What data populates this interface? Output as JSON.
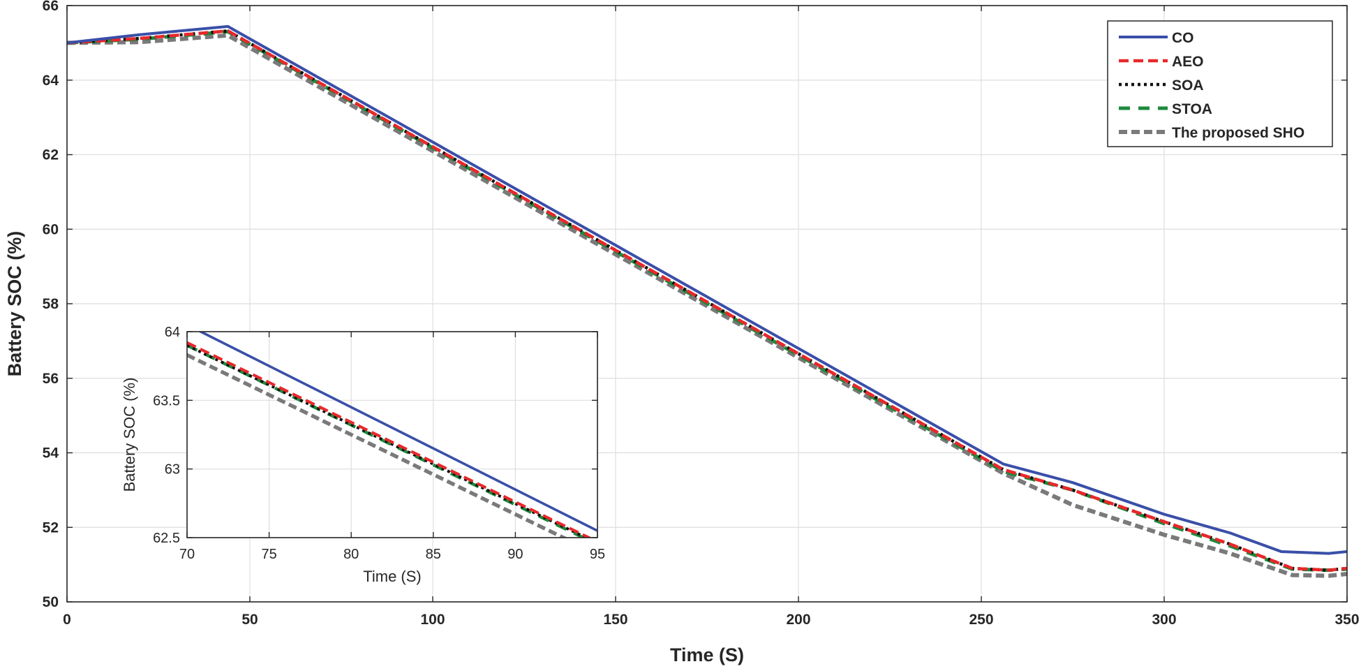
{
  "chart_data": [
    {
      "type": "line",
      "title": "",
      "xlabel": "Time (S)",
      "ylabel": "Battery SOC (%)",
      "xlim": [
        0,
        350
      ],
      "ylim": [
        50,
        66
      ],
      "xticks": [
        0,
        50,
        100,
        150,
        200,
        250,
        300,
        350
      ],
      "yticks": [
        50,
        52,
        54,
        56,
        58,
        60,
        62,
        64,
        66
      ],
      "grid": true,
      "legend_position": "top-right",
      "series": [
        {
          "name": "CO",
          "color": "#3a4fa8",
          "style": "solid",
          "x": [
            0,
            20,
            44,
            256,
            275,
            300,
            318,
            332,
            345,
            350
          ],
          "y": [
            65.0,
            65.22,
            65.44,
            53.7,
            53.2,
            52.35,
            51.85,
            51.35,
            51.3,
            51.35
          ]
        },
        {
          "name": "AEO",
          "color": "#e8282b",
          "style": "dashed",
          "x": [
            0,
            20,
            44,
            256,
            275,
            300,
            318,
            335,
            345,
            350
          ],
          "y": [
            65.0,
            65.12,
            65.32,
            53.55,
            53.0,
            52.15,
            51.55,
            50.9,
            50.85,
            50.9
          ]
        },
        {
          "name": "SOA",
          "color": "#111111",
          "style": "dotted",
          "x": [
            0,
            20,
            44,
            256,
            275,
            300,
            318,
            335,
            345,
            350
          ],
          "y": [
            65.0,
            65.12,
            65.32,
            53.55,
            53.0,
            52.15,
            51.55,
            50.9,
            50.85,
            50.9
          ]
        },
        {
          "name": "STOA",
          "color": "#1e8a3c",
          "style": "dash-gap",
          "x": [
            0,
            20,
            44,
            256,
            275,
            300,
            318,
            335,
            345,
            350
          ],
          "y": [
            65.0,
            65.1,
            65.3,
            53.5,
            53.0,
            52.1,
            51.5,
            50.88,
            50.85,
            50.88
          ]
        },
        {
          "name": "The proposed SHO",
          "color": "#7a7a7a",
          "style": "dashed-thick",
          "x": [
            0,
            20,
            44,
            256,
            275,
            300,
            318,
            335,
            345,
            350
          ],
          "y": [
            65.0,
            65.02,
            65.2,
            53.45,
            52.6,
            51.8,
            51.3,
            50.72,
            50.7,
            50.75
          ]
        }
      ]
    },
    {
      "type": "line",
      "title": "",
      "xlabel": "Time (S)",
      "ylabel": "Battery SOC (%)",
      "xlim": [
        70,
        95
      ],
      "ylim": [
        62.5,
        64
      ],
      "xticks": [
        70,
        75,
        80,
        85,
        90,
        95
      ],
      "yticks": [
        62.5,
        63,
        63.5,
        64
      ],
      "ytick_labels": [
        "62.5",
        "63",
        "63.5",
        "64"
      ],
      "grid": true,
      "series": [
        {
          "name": "CO",
          "x": [
            70,
            95
          ],
          "y": [
            64.05,
            62.55
          ]
        },
        {
          "name": "AEO",
          "x": [
            70,
            95
          ],
          "y": [
            63.92,
            62.47
          ]
        },
        {
          "name": "SOA",
          "x": [
            70,
            95
          ],
          "y": [
            63.9,
            62.46
          ]
        },
        {
          "name": "STOA",
          "x": [
            70,
            95
          ],
          "y": [
            63.9,
            62.45
          ]
        },
        {
          "name": "The proposed SHO",
          "x": [
            70,
            95
          ],
          "y": [
            63.83,
            62.38
          ]
        }
      ]
    }
  ]
}
